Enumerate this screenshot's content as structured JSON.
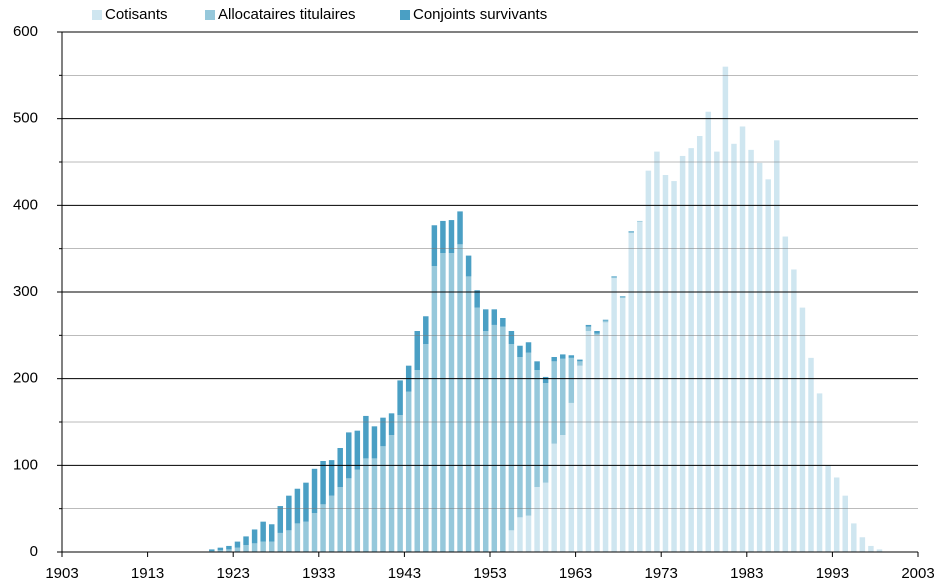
{
  "chart_data": {
    "type": "bar",
    "stacked": true,
    "x": [
      1920,
      1921,
      1922,
      1923,
      1924,
      1925,
      1926,
      1927,
      1928,
      1929,
      1930,
      1931,
      1932,
      1933,
      1934,
      1935,
      1936,
      1937,
      1938,
      1939,
      1940,
      1941,
      1942,
      1943,
      1944,
      1945,
      1946,
      1947,
      1948,
      1949,
      1950,
      1951,
      1952,
      1953,
      1954,
      1955,
      1956,
      1957,
      1958,
      1959,
      1960,
      1961,
      1962,
      1963,
      1964,
      1965,
      1966,
      1967,
      1968,
      1969,
      1970,
      1971,
      1972,
      1973,
      1974,
      1975,
      1976,
      1977,
      1978,
      1979,
      1980,
      1981,
      1982,
      1983,
      1984,
      1985,
      1986,
      1987,
      1988,
      1989,
      1990,
      1991,
      1992,
      1993,
      1994,
      1995,
      1996,
      1997,
      1998
    ],
    "series": [
      {
        "name": "Cotisants",
        "color": "#cfe6f0",
        "values": [
          0,
          0,
          0,
          0,
          0,
          0,
          0,
          0,
          0,
          0,
          0,
          0,
          0,
          0,
          0,
          0,
          0,
          0,
          0,
          0,
          0,
          0,
          0,
          0,
          0,
          0,
          0,
          0,
          0,
          0,
          0,
          0,
          0,
          0,
          0,
          25,
          40,
          42,
          75,
          80,
          125,
          135,
          172,
          215,
          255,
          250,
          265,
          316,
          293,
          368,
          381,
          440,
          462,
          435,
          428,
          457,
          466,
          480,
          508,
          462,
          560,
          471,
          491,
          464,
          449,
          430,
          475,
          364,
          326,
          282,
          224,
          183,
          100,
          86,
          65,
          33,
          17,
          7,
          3
        ]
      },
      {
        "name": "Allocataires titulaires",
        "color": "#96c8db",
        "values": [
          1,
          2,
          3,
          5,
          8,
          10,
          12,
          12,
          22,
          25,
          33,
          35,
          45,
          55,
          65,
          75,
          85,
          95,
          108,
          108,
          122,
          135,
          158,
          185,
          210,
          240,
          330,
          345,
          345,
          355,
          318,
          282,
          255,
          262,
          260,
          215,
          185,
          188,
          135,
          115,
          95,
          88,
          52,
          5,
          5,
          2,
          2,
          1,
          1,
          1,
          1,
          0,
          0,
          0,
          0,
          0,
          0,
          0,
          0,
          0,
          0,
          0,
          0,
          0,
          0,
          0,
          0,
          0,
          0,
          0,
          0,
          0,
          0,
          0,
          0,
          0,
          0,
          0,
          0
        ]
      },
      {
        "name": "Conjoints survivants",
        "color": "#4a9fc4",
        "values": [
          2,
          3,
          4,
          7,
          10,
          16,
          23,
          20,
          31,
          40,
          40,
          45,
          51,
          50,
          41,
          45,
          53,
          45,
          49,
          37,
          33,
          25,
          40,
          30,
          45,
          32,
          47,
          37,
          38,
          38,
          24,
          20,
          25,
          18,
          10,
          15,
          13,
          12,
          10,
          7,
          5,
          5,
          3,
          2,
          2,
          3,
          1,
          1,
          1,
          1,
          0,
          0,
          0,
          0,
          0,
          0,
          0,
          0,
          0,
          0,
          0,
          0,
          0,
          0,
          0,
          0,
          0,
          0,
          0,
          0,
          0,
          0,
          0,
          0,
          0,
          0,
          0,
          0,
          0
        ]
      }
    ],
    "xlim": [
      1903,
      2003
    ],
    "xticks": [
      1903,
      1913,
      1923,
      1933,
      1943,
      1953,
      1963,
      1973,
      1983,
      1993,
      2003
    ],
    "ylim": [
      0,
      600
    ],
    "yticks": [
      0,
      100,
      200,
      300,
      400,
      500,
      600
    ],
    "yminor_ticks": [
      50,
      150,
      250,
      350,
      450,
      550
    ],
    "grid": true,
    "legend": "top-left"
  }
}
